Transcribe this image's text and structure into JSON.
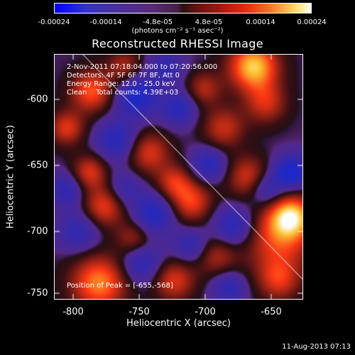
{
  "colorbar": {
    "ticks": [
      "-0.00024",
      "-0.00014",
      "-4.8e-05",
      "4.8e-05",
      "0.00014",
      "0.00024"
    ],
    "units": "(photons cm⁻² s⁻¹ asec⁻²)"
  },
  "title": "Reconstructed RHESSI Image",
  "annotations": {
    "time_range": "2-Nov-2011 07:18:04.000 to 07:20:56.000",
    "detectors": "Detectors: 4F 5F 6F 7F 8F, Att 0",
    "energy": "Energy Range: 12.0 - 25.0 keV",
    "clean_counts": "Clean    Total counts: 4.39E+03",
    "peak": "Position of Peak = [-655,-568]"
  },
  "axes": {
    "xlabel": "Heliocentric X (arcsec)",
    "ylabel": "Heliocentric Y (arcsec)",
    "x_ticks": [
      "-800",
      "-750",
      "-700",
      "-650"
    ],
    "y_ticks": [
      "-600",
      "-650",
      "-700",
      "-750"
    ],
    "x_range": [
      -812,
      -623
    ],
    "y_range": [
      -756,
      -570
    ]
  },
  "footer": {
    "datestamp": "11-Aug-2013 07:13"
  },
  "image": {
    "description_colormap": "blue-purple-black-red-yellow-white",
    "peak_position_arcsec": [
      -655,
      -568
    ]
  }
}
